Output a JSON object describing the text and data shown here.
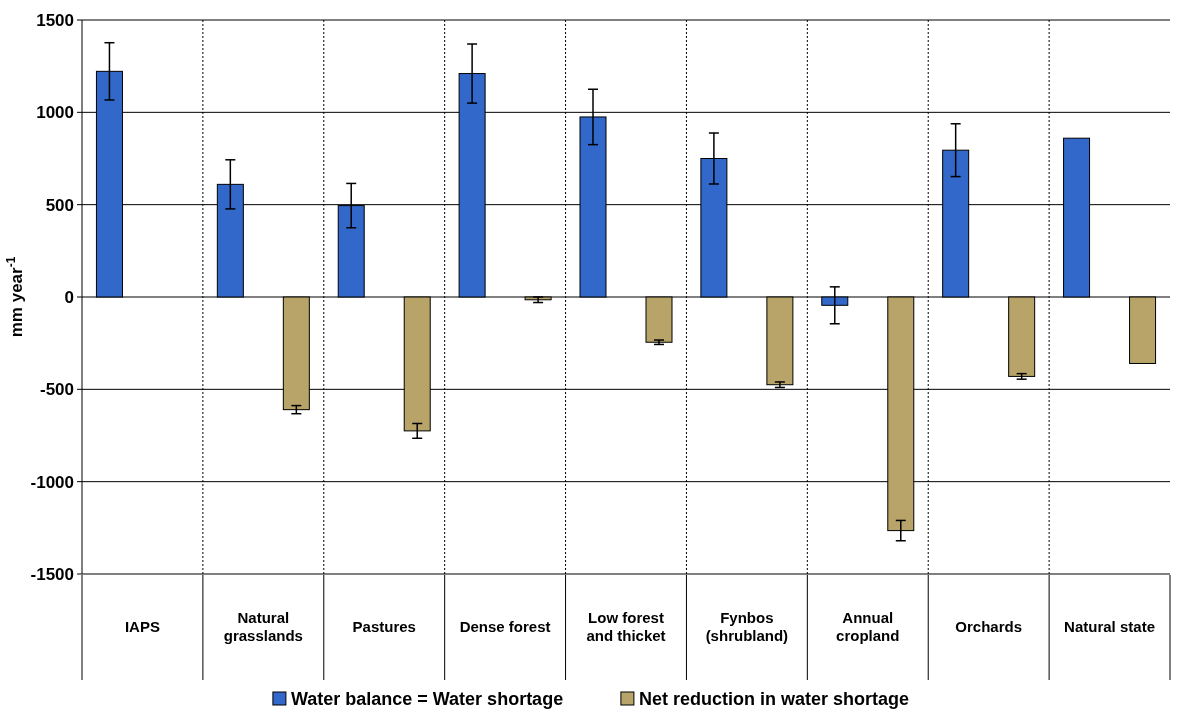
{
  "chart_data": {
    "type": "bar",
    "ylabel": "mm year$^{-1}$",
    "categories": [
      "IAPS",
      "Natural grasslands",
      "Pastures",
      "Dense forest",
      "Low forest and thicket",
      "Fynbos (shrubland)",
      "Annual cropland",
      "Orchards",
      "Natural state"
    ],
    "series": [
      {
        "name": "Water balance = Water shortage",
        "color": "#3168c9",
        "values": [
          1222,
          610,
          495,
          1210,
          975,
          750,
          -45,
          795,
          860
        ],
        "errors": [
          155,
          133,
          120,
          160,
          150,
          138,
          100,
          143,
          null
        ]
      },
      {
        "name": "Net reduction in water shortage",
        "color": "#b8a468",
        "values": [
          0,
          -610,
          -725,
          -15,
          -245,
          -475,
          -1265,
          -430,
          -360
        ],
        "errors": [
          null,
          22,
          40,
          15,
          12,
          15,
          55,
          15,
          null
        ]
      }
    ],
    "ylim": [
      -1500,
      1500
    ],
    "yticks": [
      -1500,
      -1000,
      -500,
      0,
      500,
      1000,
      1500
    ],
    "grid": "y",
    "legend": "bottom"
  }
}
